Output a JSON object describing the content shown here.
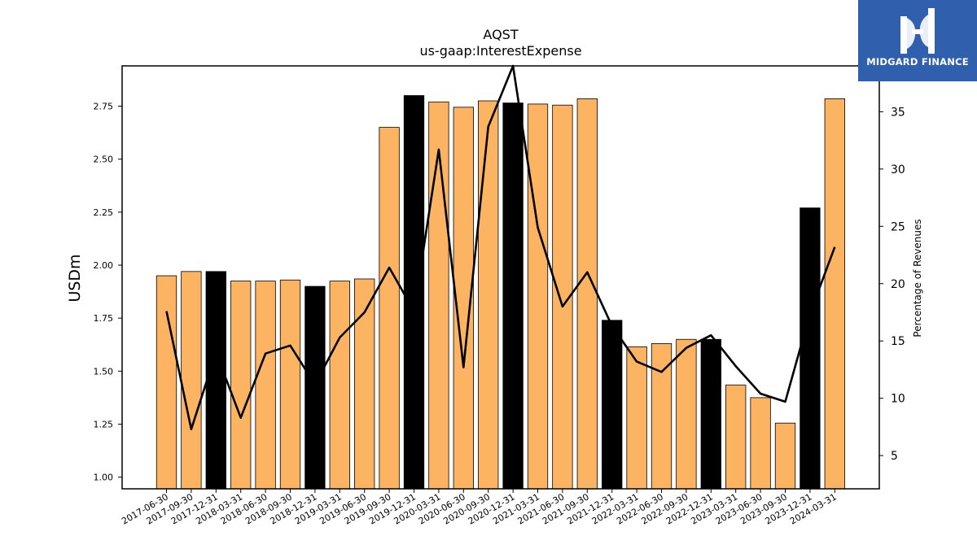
{
  "logo": {
    "text": "MIDGARD FINANCE",
    "background": "#2f5fad"
  },
  "chart_data": {
    "type": "bar",
    "title": "AQST",
    "subtitle": "us-gaap:InterestExpense",
    "ylabel": "USDm",
    "y2label": "Percentage of Revenues",
    "ylim": [
      0.945,
      2.94
    ],
    "y2lim": [
      2.1,
      39.0
    ],
    "yticks": [
      "1.00",
      "1.25",
      "1.50",
      "1.75",
      "2.00",
      "2.25",
      "2.50",
      "2.75"
    ],
    "y2ticks": [
      "5",
      "10",
      "15",
      "20",
      "25",
      "30",
      "35"
    ],
    "colors": {
      "regular": "#fdb462",
      "year_end": "#000000",
      "line": "#000000"
    },
    "categories": [
      "2017-06-30",
      "2017-09-30",
      "2017-12-31",
      "2018-03-31",
      "2018-06-30",
      "2018-09-30",
      "2018-12-31",
      "2019-03-31",
      "2019-06-30",
      "2019-09-30",
      "2019-12-31",
      "2020-03-31",
      "2020-06-30",
      "2020-09-30",
      "2020-12-31",
      "2021-03-31",
      "2021-06-30",
      "2021-09-30",
      "2021-12-31",
      "2022-03-31",
      "2022-06-30",
      "2022-09-30",
      "2022-12-31",
      "2023-03-31",
      "2023-06-30",
      "2023-09-30",
      "2023-12-31",
      "2024-03-31"
    ],
    "series": [
      {
        "type": "bar",
        "values": [
          1.95,
          1.97,
          1.97,
          1.925,
          1.925,
          1.93,
          1.9,
          1.925,
          1.935,
          2.65,
          2.8,
          2.77,
          2.745,
          2.775,
          2.765,
          2.76,
          2.755,
          2.785,
          1.74,
          1.615,
          1.63,
          1.65,
          1.65,
          1.435,
          1.375,
          1.255,
          2.27,
          2.785
        ],
        "highlight": [
          false,
          false,
          true,
          false,
          false,
          false,
          true,
          false,
          false,
          false,
          true,
          false,
          false,
          false,
          true,
          false,
          false,
          false,
          true,
          false,
          false,
          false,
          true,
          false,
          false,
          false,
          true,
          false
        ]
      },
      {
        "type": "line",
        "axis": "right",
        "values": [
          17.6,
          7.3,
          14.0,
          8.3,
          13.9,
          14.6,
          11.2,
          15.3,
          17.5,
          21.4,
          17.6,
          31.7,
          12.7,
          33.7,
          39.0,
          24.9,
          18.0,
          21.0,
          16.3,
          13.2,
          12.3,
          14.4,
          15.5,
          12.8,
          10.4,
          9.7,
          17.4,
          23.2
        ]
      }
    ]
  }
}
